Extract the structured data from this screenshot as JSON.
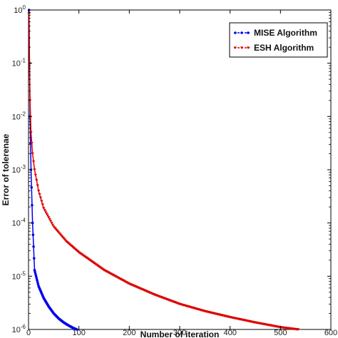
{
  "chart_data": {
    "type": "line",
    "title": "",
    "xlabel": "Number of iteration",
    "ylabel": "Error of tolerenae",
    "xlim": [
      0,
      600
    ],
    "ylim": [
      1e-06,
      1
    ],
    "yscale": "log",
    "grid": false,
    "legend_position": "top-right",
    "x_ticks": [
      {
        "value": 0,
        "label": "0"
      },
      {
        "value": 100,
        "label": "100"
      },
      {
        "value": 200,
        "label": "200"
      },
      {
        "value": 300,
        "label": "300"
      },
      {
        "value": 400,
        "label": "400"
      },
      {
        "value": 500,
        "label": "500"
      },
      {
        "value": 600,
        "label": "600"
      }
    ],
    "y_ticks": [
      {
        "value": 1e-06,
        "base": "10",
        "exp": "-6"
      },
      {
        "value": 1e-05,
        "base": "10",
        "exp": "-5"
      },
      {
        "value": 0.0001,
        "base": "10",
        "exp": "-4"
      },
      {
        "value": 0.001,
        "base": "10",
        "exp": "-3"
      },
      {
        "value": 0.01,
        "base": "10",
        "exp": "-2"
      },
      {
        "value": 0.1,
        "base": "10",
        "exp": "-1"
      },
      {
        "value": 1,
        "base": "10",
        "exp": "0"
      }
    ],
    "series": [
      {
        "name": "MISE Algorithm",
        "color": "#0000ee",
        "marker": "circle",
        "x": [
          1,
          2,
          3,
          5,
          8,
          12,
          20,
          30,
          40,
          50,
          60,
          70,
          80,
          90,
          96
        ],
        "y": [
          1.0,
          0.1,
          0.01,
          0.001,
          0.0001,
          1.3e-05,
          6.5e-06,
          3.9e-06,
          2.7e-06,
          2e-06,
          1.6e-06,
          1.35e-06,
          1.18e-06,
          1.05e-06,
          1e-06
        ]
      },
      {
        "name": "ESH Algorithm",
        "color": "#dd0000",
        "marker": "triangle-down",
        "x": [
          1,
          2,
          3,
          5,
          8,
          12,
          20,
          30,
          50,
          75,
          100,
          150,
          200,
          250,
          300,
          350,
          400,
          450,
          500,
          535
        ],
        "y": [
          0.85,
          0.1,
          0.02,
          0.005,
          0.002,
          0.001,
          0.0004,
          0.00019,
          8.5e-05,
          4.5e-05,
          2.8e-05,
          1.3e-05,
          7.2e-06,
          4.5e-06,
          3e-06,
          2.2e-06,
          1.7e-06,
          1.35e-06,
          1.1e-06,
          1e-06
        ]
      }
    ]
  }
}
